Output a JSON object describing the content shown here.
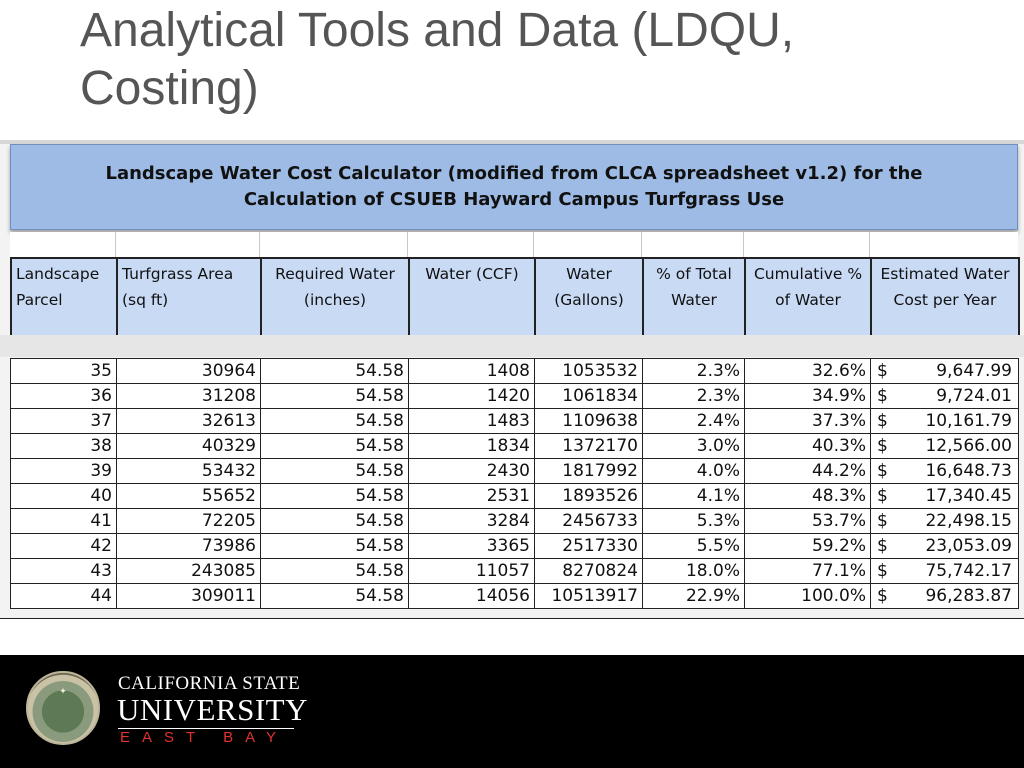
{
  "slide": {
    "title": "Analytical Tools and Data (LDQU, Costing)"
  },
  "spreadsheet": {
    "title": "Landscape Water Cost Calculator (modified from CLCA spreadsheet v1.2) for the Calculation of CSUEB Hayward Campus Turfgrass Use",
    "columns": [
      "Landscape Parcel",
      "Turfgrass Area (sq ft)",
      "Required Water (inches)",
      "Water (CCF)",
      "Water (Gallons)",
      "% of Total Water",
      "Cumulative % of Water",
      "Estimated Water Cost per Year"
    ],
    "currency_symbol": "$",
    "rows": [
      [
        "35",
        "30964",
        "54.58",
        "1408",
        "1053532",
        "2.3%",
        "32.6%",
        "9,647.99"
      ],
      [
        "36",
        "31208",
        "54.58",
        "1420",
        "1061834",
        "2.3%",
        "34.9%",
        "9,724.01"
      ],
      [
        "37",
        "32613",
        "54.58",
        "1483",
        "1109638",
        "2.4%",
        "37.3%",
        "10,161.79"
      ],
      [
        "38",
        "40329",
        "54.58",
        "1834",
        "1372170",
        "3.0%",
        "40.3%",
        "12,566.00"
      ],
      [
        "39",
        "53432",
        "54.58",
        "2430",
        "1817992",
        "4.0%",
        "44.2%",
        "16,648.73"
      ],
      [
        "40",
        "55652",
        "54.58",
        "2531",
        "1893526",
        "4.1%",
        "48.3%",
        "17,340.45"
      ],
      [
        "41",
        "72205",
        "54.58",
        "3284",
        "2456733",
        "5.3%",
        "53.7%",
        "22,498.15"
      ],
      [
        "42",
        "73986",
        "54.58",
        "3365",
        "2517330",
        "5.5%",
        "59.2%",
        "23,053.09"
      ],
      [
        "43",
        "243085",
        "54.58",
        "11057",
        "8270824",
        "18.0%",
        "77.1%",
        "75,742.17"
      ],
      [
        "44",
        "309011",
        "54.58",
        "14056",
        "10513917",
        "22.9%",
        "100.0%",
        "96,283.87"
      ]
    ]
  },
  "footer": {
    "logo_line1": "CALIFORNIA STATE",
    "logo_line2": "UNIVERSITY",
    "logo_line3": "EAST BAY",
    "colors": {
      "background": "#000000",
      "accent": "#e0322f"
    }
  }
}
